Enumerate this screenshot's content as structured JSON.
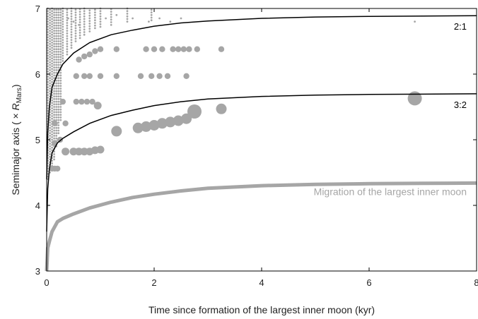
{
  "chart_data": {
    "type": "scatter",
    "xlabel": "Time since formation of the largest inner moon (kyr)",
    "ylabel_prefix": "Semimajor axis ( × ",
    "ylabel_var": "R",
    "ylabel_sub": "Mars",
    "ylabel_suffix": ")",
    "xlim": [
      0,
      8
    ],
    "ylim": [
      3,
      7
    ],
    "xticks": [
      0,
      2,
      4,
      6,
      8
    ],
    "yticks": [
      3,
      4,
      5,
      6,
      7
    ],
    "grid": false,
    "resonances": [
      {
        "label": "2:1",
        "x": [
          0,
          0.02,
          0.05,
          0.1,
          0.2,
          0.3,
          0.5,
          0.8,
          1.2,
          1.6,
          2.0,
          2.5,
          3.0,
          4.0,
          5.0,
          6.0,
          7.0,
          8.0
        ],
        "y": [
          4.4,
          5.1,
          5.5,
          5.8,
          6.0,
          6.15,
          6.32,
          6.48,
          6.6,
          6.67,
          6.73,
          6.78,
          6.81,
          6.85,
          6.87,
          6.88,
          6.885,
          6.89
        ]
      },
      {
        "label": "3:2",
        "x": [
          0,
          0.02,
          0.05,
          0.1,
          0.2,
          0.3,
          0.5,
          0.8,
          1.2,
          1.6,
          2.0,
          2.5,
          3.0,
          4.0,
          5.0,
          6.0,
          7.0,
          8.0
        ],
        "y": [
          3.6,
          4.25,
          4.55,
          4.8,
          4.95,
          5.02,
          5.12,
          5.25,
          5.37,
          5.45,
          5.52,
          5.58,
          5.62,
          5.66,
          5.68,
          5.69,
          5.695,
          5.7
        ]
      }
    ],
    "migration": {
      "label": "Migration of the largest inner moon",
      "x": [
        0,
        0.02,
        0.05,
        0.1,
        0.2,
        0.3,
        0.5,
        0.8,
        1.2,
        1.6,
        2.0,
        2.5,
        3.0,
        4.0,
        5.0,
        6.0,
        7.0,
        8.0
      ],
      "y": [
        3.0,
        3.35,
        3.45,
        3.6,
        3.75,
        3.8,
        3.87,
        3.96,
        4.05,
        4.12,
        4.17,
        4.22,
        4.26,
        4.3,
        4.32,
        4.33,
        4.335,
        4.34
      ]
    },
    "moons": [
      {
        "x": 1.3,
        "y": 5.13,
        "size": 3
      },
      {
        "x": 1.7,
        "y": 5.18,
        "size": 3
      },
      {
        "x": 1.85,
        "y": 5.2,
        "size": 3
      },
      {
        "x": 2.0,
        "y": 5.22,
        "size": 3
      },
      {
        "x": 2.15,
        "y": 5.25,
        "size": 3
      },
      {
        "x": 2.3,
        "y": 5.27,
        "size": 3
      },
      {
        "x": 2.45,
        "y": 5.29,
        "size": 3
      },
      {
        "x": 2.6,
        "y": 5.32,
        "size": 3
      },
      {
        "x": 2.75,
        "y": 5.43,
        "size": 4
      },
      {
        "x": 3.25,
        "y": 5.47,
        "size": 3
      },
      {
        "x": 6.85,
        "y": 5.63,
        "size": 4
      },
      {
        "x": 0.35,
        "y": 4.82,
        "size": 2
      },
      {
        "x": 0.5,
        "y": 4.82,
        "size": 2
      },
      {
        "x": 0.6,
        "y": 4.82,
        "size": 2
      },
      {
        "x": 0.7,
        "y": 4.82,
        "size": 2
      },
      {
        "x": 0.8,
        "y": 4.82,
        "size": 2
      },
      {
        "x": 0.9,
        "y": 4.84,
        "size": 2
      },
      {
        "x": 1.0,
        "y": 4.85,
        "size": 2
      },
      {
        "x": 0.1,
        "y": 4.56,
        "size": 1
      },
      {
        "x": 0.15,
        "y": 4.56,
        "size": 1
      },
      {
        "x": 0.2,
        "y": 4.56,
        "size": 1
      },
      {
        "x": 0.15,
        "y": 4.95,
        "size": 1
      },
      {
        "x": 0.25,
        "y": 5.0,
        "size": 1
      },
      {
        "x": 0.15,
        "y": 5.25,
        "size": 1
      },
      {
        "x": 0.35,
        "y": 5.25,
        "size": 1
      },
      {
        "x": 0.3,
        "y": 5.58,
        "size": 1
      },
      {
        "x": 0.55,
        "y": 5.58,
        "size": 1
      },
      {
        "x": 0.65,
        "y": 5.58,
        "size": 1
      },
      {
        "x": 0.75,
        "y": 5.58,
        "size": 1
      },
      {
        "x": 0.85,
        "y": 5.58,
        "size": 1
      },
      {
        "x": 0.95,
        "y": 5.52,
        "size": 2
      },
      {
        "x": 0.55,
        "y": 5.97,
        "size": 1
      },
      {
        "x": 0.7,
        "y": 5.97,
        "size": 1
      },
      {
        "x": 0.8,
        "y": 5.97,
        "size": 1
      },
      {
        "x": 1.0,
        "y": 5.97,
        "size": 1
      },
      {
        "x": 1.3,
        "y": 5.97,
        "size": 1
      },
      {
        "x": 1.75,
        "y": 5.97,
        "size": 1
      },
      {
        "x": 1.95,
        "y": 5.97,
        "size": 1
      },
      {
        "x": 2.1,
        "y": 5.97,
        "size": 1
      },
      {
        "x": 2.25,
        "y": 5.97,
        "size": 1
      },
      {
        "x": 2.6,
        "y": 5.97,
        "size": 1
      },
      {
        "x": 0.6,
        "y": 6.22,
        "size": 1
      },
      {
        "x": 0.7,
        "y": 6.27,
        "size": 1
      },
      {
        "x": 0.8,
        "y": 6.3,
        "size": 1
      },
      {
        "x": 0.9,
        "y": 6.35,
        "size": 1
      },
      {
        "x": 1.0,
        "y": 6.38,
        "size": 1
      },
      {
        "x": 1.3,
        "y": 6.38,
        "size": 1
      },
      {
        "x": 1.85,
        "y": 6.38,
        "size": 1
      },
      {
        "x": 2.0,
        "y": 6.38,
        "size": 1
      },
      {
        "x": 2.15,
        "y": 6.38,
        "size": 1
      },
      {
        "x": 2.35,
        "y": 6.38,
        "size": 1
      },
      {
        "x": 2.45,
        "y": 6.38,
        "size": 1
      },
      {
        "x": 2.55,
        "y": 6.38,
        "size": 1
      },
      {
        "x": 2.65,
        "y": 6.38,
        "size": 1
      },
      {
        "x": 2.8,
        "y": 6.38,
        "size": 1
      },
      {
        "x": 3.25,
        "y": 6.38,
        "size": 1
      },
      {
        "x": 0.4,
        "y": 6.85,
        "size": 0
      },
      {
        "x": 0.5,
        "y": 6.8,
        "size": 0
      },
      {
        "x": 0.6,
        "y": 6.75,
        "size": 0
      },
      {
        "x": 1.1,
        "y": 6.85,
        "size": 0
      },
      {
        "x": 1.3,
        "y": 6.9,
        "size": 0
      },
      {
        "x": 1.6,
        "y": 6.85,
        "size": 0
      },
      {
        "x": 1.9,
        "y": 6.8,
        "size": 0
      },
      {
        "x": 2.1,
        "y": 6.85,
        "size": 0
      },
      {
        "x": 2.3,
        "y": 6.8,
        "size": 0
      },
      {
        "x": 2.5,
        "y": 6.85,
        "size": 0
      },
      {
        "x": 6.85,
        "y": 6.8,
        "size": 0
      }
    ],
    "dense_columns": [
      {
        "x": 0.02,
        "y0": 4.4,
        "y1": 7.0
      },
      {
        "x": 0.06,
        "y0": 4.5,
        "y1": 7.0
      },
      {
        "x": 0.1,
        "y0": 4.6,
        "y1": 7.0
      },
      {
        "x": 0.14,
        "y0": 4.7,
        "y1": 7.0
      },
      {
        "x": 0.18,
        "y0": 4.9,
        "y1": 7.0
      },
      {
        "x": 0.22,
        "y0": 5.1,
        "y1": 7.0
      },
      {
        "x": 0.26,
        "y0": 5.3,
        "y1": 7.0
      },
      {
        "x": 0.3,
        "y0": 6.2,
        "y1": 7.0
      },
      {
        "x": 0.38,
        "y0": 6.3,
        "y1": 7.0
      },
      {
        "x": 0.46,
        "y0": 6.4,
        "y1": 7.0
      },
      {
        "x": 0.54,
        "y0": 6.5,
        "y1": 7.0
      },
      {
        "x": 0.62,
        "y0": 6.55,
        "y1": 7.0
      },
      {
        "x": 0.7,
        "y0": 6.6,
        "y1": 7.0
      },
      {
        "x": 0.8,
        "y0": 6.65,
        "y1": 7.0
      },
      {
        "x": 0.9,
        "y0": 6.7,
        "y1": 7.0
      },
      {
        "x": 1.0,
        "y0": 6.72,
        "y1": 7.0
      },
      {
        "x": 1.2,
        "y0": 6.75,
        "y1": 7.0
      },
      {
        "x": 1.5,
        "y0": 6.8,
        "y1": 7.0
      },
      {
        "x": 1.95,
        "y0": 6.82,
        "y1": 7.0
      }
    ],
    "colors": {
      "curve": "#000000",
      "migration": "#a6a6a6",
      "moon": "#a6a6a6"
    }
  }
}
